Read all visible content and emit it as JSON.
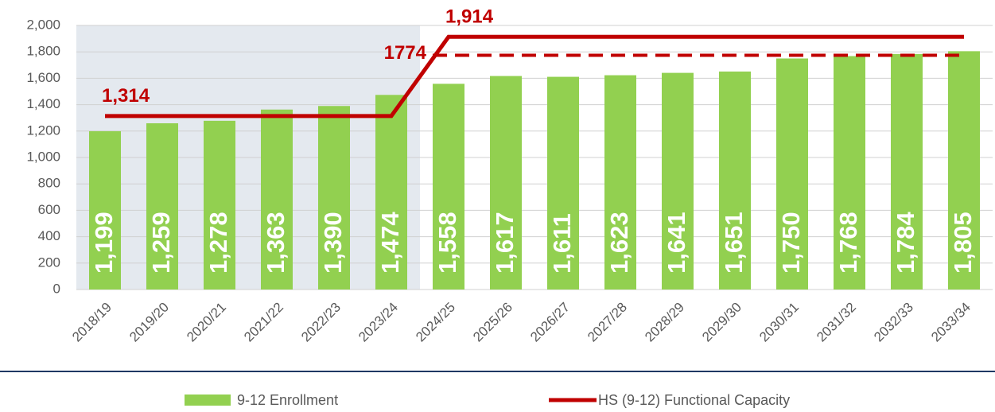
{
  "chart_data": {
    "type": "bar",
    "categories": [
      "2018/19",
      "2019/20",
      "2020/21",
      "2021/22",
      "2022/23",
      "2023/24",
      "2024/25",
      "2025/26",
      "2026/27",
      "2027/28",
      "2028/29",
      "2029/30",
      "2030/31",
      "2031/32",
      "2032/33",
      "2033/34"
    ],
    "series": [
      {
        "name": "9-12 Enrollment",
        "color": "#92d050",
        "values": [
          1199,
          1259,
          1278,
          1363,
          1390,
          1474,
          1558,
          1617,
          1611,
          1623,
          1641,
          1651,
          1750,
          1768,
          1784,
          1805
        ],
        "value_labels": [
          "1,199",
          "1,259",
          "1,278",
          "1,363",
          "1,390",
          "1,474",
          "1,558",
          "1,617",
          "1,611",
          "1,623",
          "1,641",
          "1,651",
          "1,750",
          "1,768",
          "1,784",
          "1,805"
        ]
      },
      {
        "name": "HS (9-12) Functional Capacity",
        "color": "#c00000",
        "type": "line",
        "values": [
          1314,
          1314,
          1314,
          1314,
          1314,
          1314,
          1914,
          1914,
          1914,
          1914,
          1914,
          1914,
          1914,
          1914,
          1914,
          1914
        ]
      }
    ],
    "reference_line": {
      "value": 1774,
      "label": "1774",
      "color": "#c00000",
      "dashed": true
    },
    "annotations": [
      {
        "text": "1,314",
        "value": 1314
      },
      {
        "text": "1,914",
        "value": 1914
      }
    ],
    "shaded_range": [
      "2018/19",
      "2023/24"
    ],
    "ylim": [
      0,
      2000
    ],
    "yticks": [
      0,
      200,
      400,
      600,
      800,
      {
        "value": 1000,
        "label": "1,000"
      },
      {
        "value": 1200,
        "label": "1,200"
      },
      {
        "value": 1400,
        "label": "1,400"
      },
      {
        "value": 1600,
        "label": "1,600"
      },
      {
        "value": 1800,
        "label": "1,800"
      },
      {
        "value": 2000,
        "label": "2,000"
      }
    ],
    "grid": true,
    "legend": "bottom"
  }
}
